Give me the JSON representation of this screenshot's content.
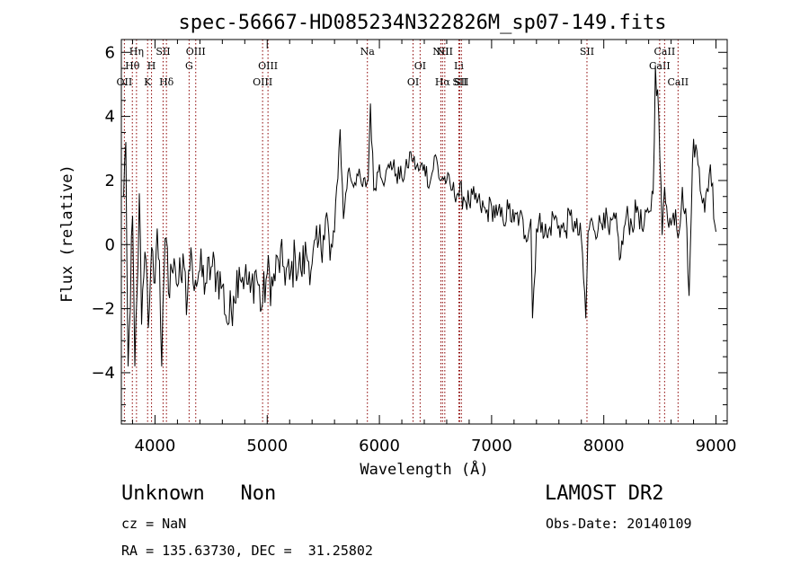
{
  "chart_data": {
    "type": "line",
    "title": "spec-56667-HD085234N322826M_sp07-149.fits",
    "xlabel": "Wavelength (Å)",
    "ylabel": "Flux (relative)",
    "xlim": [
      3700,
      9100
    ],
    "ylim": [
      -5.6,
      6.4
    ],
    "x_ticks": [
      4000,
      5000,
      6000,
      7000,
      8000,
      9000
    ],
    "y_ticks": [
      -4,
      -2,
      0,
      2,
      4,
      6
    ],
    "grid": false,
    "line_color": "#000000",
    "marker_color": "#8b0000",
    "series": [
      {
        "x": [
          3720,
          3740,
          3760,
          3780,
          3800,
          3820,
          3840,
          3860,
          3880,
          3900,
          3920,
          3940,
          3960,
          3980,
          4000,
          4020,
          4040,
          4060,
          4080,
          4100,
          4120,
          4140,
          4160,
          4180,
          4200,
          4220,
          4240,
          4260,
          4280,
          4300,
          4330,
          4360,
          4400,
          4450,
          4500,
          4550,
          4600,
          4650,
          4700,
          4750,
          4800,
          4850,
          4900,
          4950,
          5000,
          5050,
          5100,
          5150,
          5200,
          5250,
          5300,
          5350,
          5400,
          5450,
          5500,
          5530,
          5560,
          5600,
          5650,
          5680,
          5700,
          5730,
          5760,
          5800,
          5850,
          5900,
          5920,
          5950,
          6000,
          6050,
          6100,
          6150,
          6200,
          6250,
          6280,
          6300,
          6350,
          6400,
          6450,
          6500,
          6540,
          6563,
          6600,
          6650,
          6700,
          6750,
          6800,
          6850,
          6900,
          6950,
          7000,
          7050,
          7100,
          7150,
          7200,
          7250,
          7300,
          7350,
          7365,
          7400,
          7450,
          7500,
          7550,
          7600,
          7650,
          7700,
          7750,
          7800,
          7840,
          7860,
          7900,
          7950,
          8000,
          8050,
          8100,
          8150,
          8200,
          8250,
          8300,
          8350,
          8400,
          8440,
          8460,
          8490,
          8520,
          8542,
          8560,
          8600,
          8640,
          8662,
          8700,
          8740,
          8760,
          8780,
          8800,
          8850,
          8900,
          8950,
          9000
        ],
        "y": [
          1.5,
          3.2,
          -3.8,
          -2.0,
          0.9,
          -3.8,
          -1.5,
          1.6,
          -2.5,
          -1.0,
          -0.5,
          -2.6,
          -0.9,
          -0.2,
          -1.2,
          0.5,
          -0.5,
          -3.8,
          -1.0,
          0.2,
          -1.5,
          -0.6,
          -0.9,
          -0.7,
          -1.3,
          -0.4,
          -1.2,
          -0.7,
          -2.2,
          -0.8,
          -0.5,
          -1.1,
          -0.8,
          -1.2,
          -0.7,
          -0.9,
          -1.3,
          -2.5,
          -1.6,
          -0.7,
          -1.0,
          -1.5,
          -0.8,
          -2.0,
          -0.9,
          -1.3,
          -0.5,
          -0.7,
          -1.1,
          -0.4,
          -0.8,
          -0.3,
          -0.6,
          -0.1,
          0.3,
          1.0,
          -0.5,
          0.4,
          3.6,
          0.8,
          1.6,
          2.4,
          1.9,
          2.2,
          1.8,
          2.0,
          4.4,
          1.7,
          2.5,
          2.0,
          2.6,
          2.2,
          2.1,
          2.4,
          2.9,
          2.6,
          2.3,
          2.5,
          1.9,
          2.8,
          2.0,
          2.1,
          2.0,
          1.7,
          1.6,
          1.5,
          1.3,
          1.4,
          1.2,
          1.0,
          1.2,
          0.9,
          0.8,
          1.1,
          0.7,
          0.9,
          0.3,
          0.8,
          -2.3,
          0.5,
          0.7,
          0.2,
          0.9,
          0.6,
          0.4,
          0.9,
          0.5,
          0.2,
          -2.3,
          0.4,
          0.7,
          0.5,
          1.0,
          0.3,
          0.8,
          -0.4,
          0.9,
          0.6,
          1.2,
          0.4,
          1.0,
          1.6,
          5.6,
          4.0,
          0.3,
          1.8,
          1.2,
          0.6,
          1.1,
          0.2,
          1.8,
          0.5,
          -1.6,
          1.0,
          3.3,
          2.4,
          1.0,
          2.5,
          0.4
        ]
      }
    ],
    "markers": [
      {
        "wavelength": 3727,
        "label": "OII",
        "row": 3
      },
      {
        "wavelength": 3798,
        "label": "Hθ",
        "row": 2
      },
      {
        "wavelength": 3835,
        "label": "Hη",
        "row": 1
      },
      {
        "wavelength": 3934,
        "label": "K",
        "row": 3
      },
      {
        "wavelength": 3969,
        "label": "H",
        "row": 2
      },
      {
        "wavelength": 4072,
        "label": "SII",
        "row": 1
      },
      {
        "wavelength": 4102,
        "label": "Hδ",
        "row": 3
      },
      {
        "wavelength": 4304,
        "label": "G",
        "row": 2
      },
      {
        "wavelength": 4363,
        "label": "OIII",
        "row": 1
      },
      {
        "wavelength": 4959,
        "label": "OIII",
        "row": 3
      },
      {
        "wavelength": 5007,
        "label": "OIII",
        "row": 2
      },
      {
        "wavelength": 5893,
        "label": "Na",
        "row": 1
      },
      {
        "wavelength": 6300,
        "label": "OI",
        "row": 3
      },
      {
        "wavelength": 6363,
        "label": "OI",
        "row": 2
      },
      {
        "wavelength": 6548,
        "label": "NII",
        "row": 1
      },
      {
        "wavelength": 6563,
        "label": "Hα",
        "row": 3
      },
      {
        "wavelength": 6583,
        "label": "NII",
        "row": 1
      },
      {
        "wavelength": 6708,
        "label": "Li",
        "row": 2
      },
      {
        "wavelength": 6716,
        "label": "SII",
        "row": 3
      },
      {
        "wavelength": 6731,
        "label": "SII",
        "row": 3
      },
      {
        "wavelength": 7850,
        "label": "SII",
        "row": 1
      },
      {
        "wavelength": 8498,
        "label": "CaII",
        "row": 2
      },
      {
        "wavelength": 8542,
        "label": "CaII",
        "row": 1
      },
      {
        "wavelength": 8662,
        "label": "CaII",
        "row": 3
      }
    ]
  },
  "info": {
    "class_label": "Unknown   Non",
    "survey": "LAMOST DR2",
    "cz": "cz = NaN",
    "obs_date": "Obs-Date: 20140109",
    "coords": "RA = 135.63730, DEC =  31.25802"
  }
}
